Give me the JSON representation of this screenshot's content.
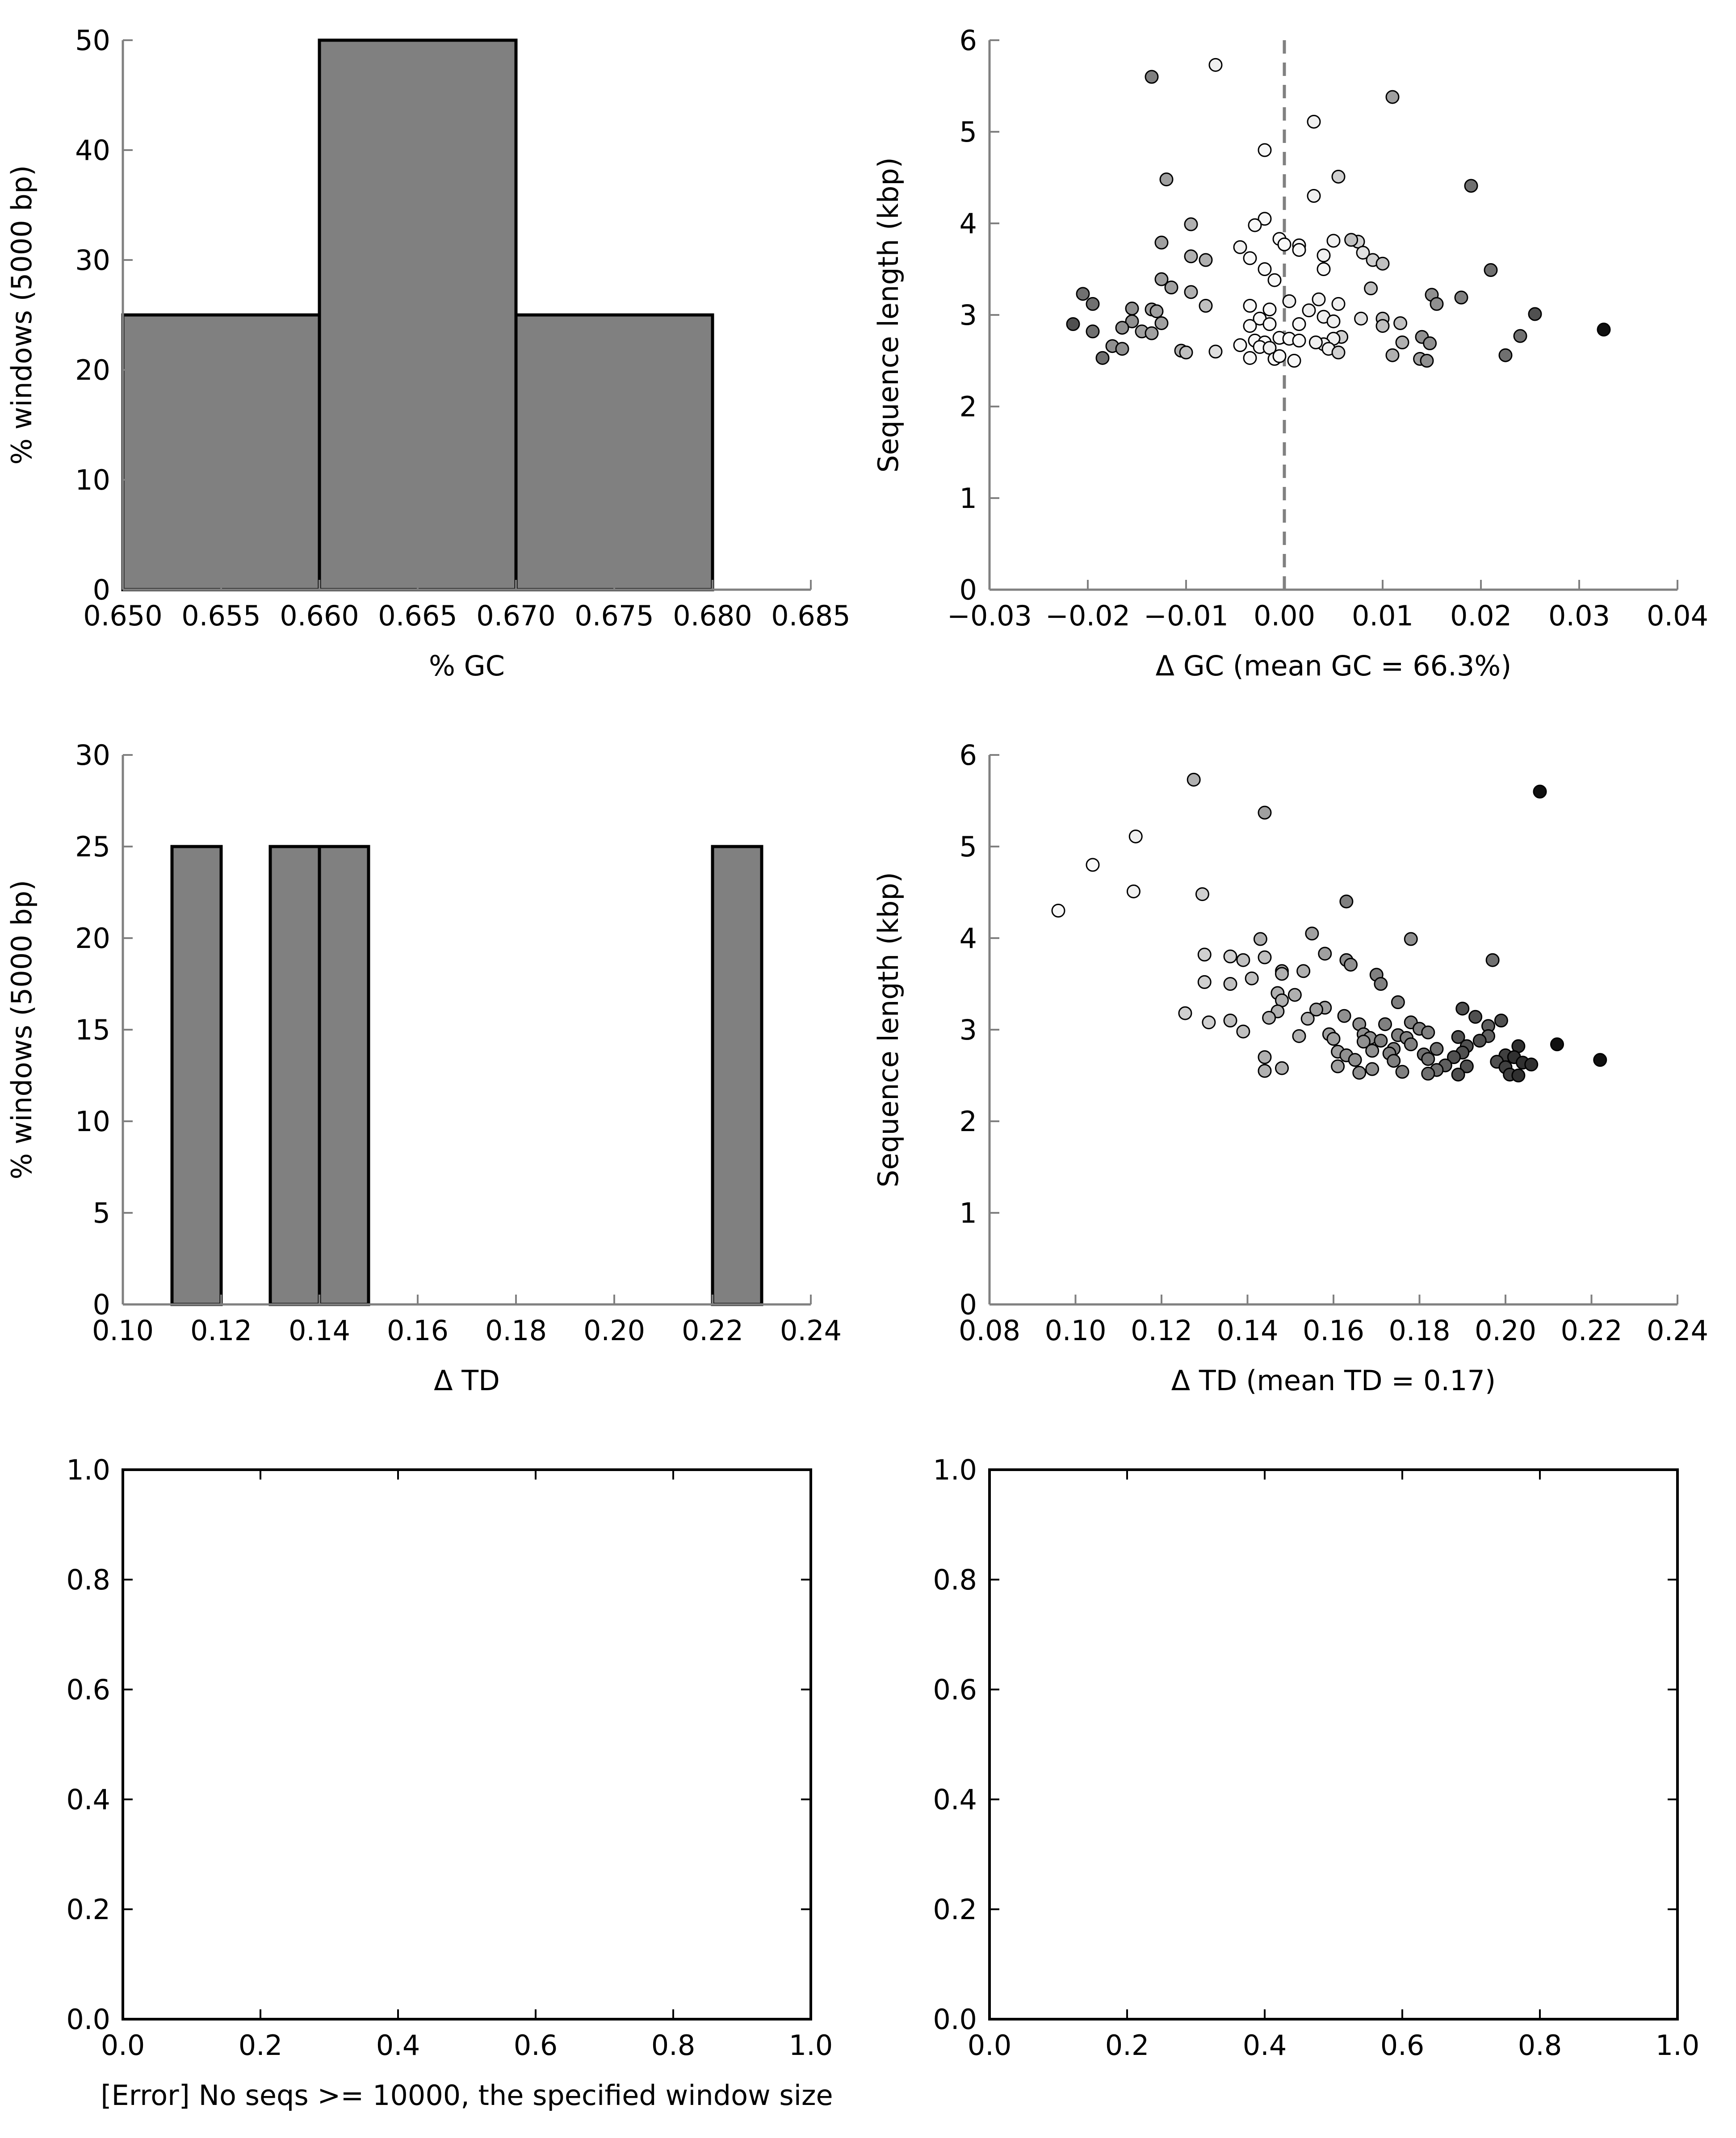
{
  "chart_data": [
    {
      "id": "gc-hist",
      "type": "bar",
      "xlabel": "% GC",
      "ylabel": "% windows (5000 bp)",
      "xlim": [
        0.65,
        0.685
      ],
      "ylim": [
        0,
        50
      ],
      "xticks": [
        "0.650",
        "0.655",
        "0.660",
        "0.665",
        "0.670",
        "0.675",
        "0.680",
        "0.685"
      ],
      "yticks": [
        "0",
        "10",
        "20",
        "30",
        "40",
        "50"
      ],
      "bars": [
        {
          "x0": 0.65,
          "x1": 0.66,
          "value": 25
        },
        {
          "x0": 0.66,
          "x1": 0.67,
          "value": 50
        },
        {
          "x0": 0.67,
          "x1": 0.68,
          "value": 25
        }
      ],
      "bar_color": "#808080"
    },
    {
      "id": "gc-scatter",
      "type": "scatter",
      "xlabel": "Δ GC (mean GC = 66.3%)",
      "ylabel": "Sequence length (kbp)",
      "xlim": [
        -0.03,
        0.04
      ],
      "ylim": [
        0,
        6
      ],
      "xticks": [
        "−0.03",
        "−0.02",
        "−0.01",
        "0.00",
        "0.01",
        "0.02",
        "0.03",
        "0.04"
      ],
      "yticks": [
        "0",
        "1",
        "2",
        "3",
        "4",
        "5",
        "6"
      ],
      "reference_line_x": 0,
      "points": [
        [
          -0.0135,
          5.6,
          "#808080"
        ],
        [
          -0.007,
          5.73,
          "#f0f0f0"
        ],
        [
          0.011,
          5.38,
          "#a0a0a0"
        ],
        [
          0.003,
          5.11,
          "#f0f0f0"
        ],
        [
          -0.002,
          4.8,
          "#f8f8f8"
        ],
        [
          0.0055,
          4.51,
          "#d0d0d0"
        ],
        [
          -0.012,
          4.48,
          "#a0a0a0"
        ],
        [
          0.019,
          4.41,
          "#707070"
        ],
        [
          0.003,
          4.3,
          "#f0f0f0"
        ],
        [
          -0.002,
          4.05,
          "#f8f8f8"
        ],
        [
          -0.003,
          3.98,
          "#f8f8f8"
        ],
        [
          -0.0095,
          3.99,
          "#b0b0b0"
        ],
        [
          -0.0005,
          3.83,
          "#f8f8f8"
        ],
        [
          0.0075,
          3.8,
          "#d0d0d0"
        ],
        [
          -0.0125,
          3.79,
          "#a0a0a0"
        ],
        [
          0.005,
          3.81,
          "#f0f0f0"
        ],
        [
          0.0068,
          3.82,
          "#c0c0c0"
        ],
        [
          0.0015,
          3.76,
          "#f8f8f8"
        ],
        [
          -0.0045,
          3.74,
          "#f0f0f0"
        ],
        [
          0.0,
          3.77,
          "#f8f8f8"
        ],
        [
          0.0015,
          3.71,
          "#f8f8f8"
        ],
        [
          0.008,
          3.68,
          "#e0e0e0"
        ],
        [
          -0.0095,
          3.64,
          "#b0b0b0"
        ],
        [
          -0.0035,
          3.62,
          "#f8f8f8"
        ],
        [
          0.004,
          3.65,
          "#f0f0f0"
        ],
        [
          -0.008,
          3.6,
          "#b0b0b0"
        ],
        [
          0.009,
          3.6,
          "#d0d0d0"
        ],
        [
          0.01,
          3.56,
          "#c0c0c0"
        ],
        [
          0.004,
          3.5,
          "#f8f8f8"
        ],
        [
          -0.002,
          3.5,
          "#f8f8f8"
        ],
        [
          0.021,
          3.49,
          "#707070"
        ],
        [
          -0.0125,
          3.39,
          "#a0a0a0"
        ],
        [
          -0.001,
          3.38,
          "#f8f8f8"
        ],
        [
          -0.0115,
          3.3,
          "#a0a0a0"
        ],
        [
          0.0088,
          3.29,
          "#c0c0c0"
        ],
        [
          -0.0095,
          3.25,
          "#b0b0b0"
        ],
        [
          -0.0205,
          3.23,
          "#707070"
        ],
        [
          0.015,
          3.22,
          "#909090"
        ],
        [
          0.018,
          3.19,
          "#808080"
        ],
        [
          0.0035,
          3.17,
          "#f0f0f0"
        ],
        [
          0.0005,
          3.15,
          "#f0f0f0"
        ],
        [
          -0.0195,
          3.12,
          "#707070"
        ],
        [
          0.0155,
          3.12,
          "#909090"
        ],
        [
          0.0055,
          3.12,
          "#f0f0f0"
        ],
        [
          -0.0035,
          3.1,
          "#f8f8f8"
        ],
        [
          -0.008,
          3.1,
          "#c0c0c0"
        ],
        [
          -0.0155,
          3.07,
          "#909090"
        ],
        [
          -0.0135,
          3.06,
          "#a0a0a0"
        ],
        [
          -0.0015,
          3.06,
          "#f8f8f8"
        ],
        [
          0.0025,
          3.05,
          "#f0f0f0"
        ],
        [
          -0.013,
          3.04,
          "#a0a0a0"
        ],
        [
          0.0255,
          3.01,
          "#505050"
        ],
        [
          0.004,
          2.98,
          "#f0f0f0"
        ],
        [
          0.0078,
          2.96,
          "#e0e0e0"
        ],
        [
          0.01,
          2.96,
          "#c0c0c0"
        ],
        [
          -0.0025,
          2.96,
          "#f8f8f8"
        ],
        [
          -0.0155,
          2.93,
          "#909090"
        ],
        [
          0.005,
          2.93,
          "#f0f0f0"
        ],
        [
          -0.0125,
          2.91,
          "#a0a0a0"
        ],
        [
          0.0118,
          2.91,
          "#c0c0c0"
        ],
        [
          -0.0015,
          2.9,
          "#f8f8f8"
        ],
        [
          -0.0215,
          2.9,
          "#505050"
        ],
        [
          0.0015,
          2.9,
          "#f8f8f8"
        ],
        [
          -0.0035,
          2.88,
          "#f8f8f8"
        ],
        [
          0.01,
          2.88,
          "#c0c0c0"
        ],
        [
          -0.0165,
          2.86,
          "#909090"
        ],
        [
          0.0325,
          2.84,
          "#101010"
        ],
        [
          -0.0195,
          2.82,
          "#707070"
        ],
        [
          -0.0145,
          2.82,
          "#a0a0a0"
        ],
        [
          -0.0135,
          2.8,
          "#a0a0a0"
        ],
        [
          0.024,
          2.77,
          "#707070"
        ],
        [
          0.0058,
          2.76,
          "#d0d0d0"
        ],
        [
          0.014,
          2.76,
          "#909090"
        ],
        [
          -0.0005,
          2.75,
          "#f8f8f8"
        ],
        [
          0.0005,
          2.74,
          "#f8f8f8"
        ],
        [
          0.005,
          2.74,
          "#f0f0f0"
        ],
        [
          -0.003,
          2.72,
          "#f8f8f8"
        ],
        [
          0.0015,
          2.72,
          "#f8f8f8"
        ],
        [
          -0.002,
          2.7,
          "#f8f8f8"
        ],
        [
          0.012,
          2.7,
          "#b0b0b0"
        ],
        [
          0.0148,
          2.69,
          "#909090"
        ],
        [
          0.004,
          2.68,
          "#f0f0f0"
        ],
        [
          -0.0045,
          2.67,
          "#f8f8f8"
        ],
        [
          -0.0175,
          2.66,
          "#909090"
        ],
        [
          -0.0025,
          2.65,
          "#f8f8f8"
        ],
        [
          -0.0015,
          2.64,
          "#f0f0f0"
        ],
        [
          0.0045,
          2.63,
          "#f0f0f0"
        ],
        [
          -0.0165,
          2.63,
          "#909090"
        ],
        [
          -0.0105,
          2.61,
          "#b0b0b0"
        ],
        [
          -0.007,
          2.6,
          "#e0e0e0"
        ],
        [
          -0.01,
          2.59,
          "#c0c0c0"
        ],
        [
          0.0055,
          2.59,
          "#d0d0d0"
        ],
        [
          0.0225,
          2.56,
          "#707070"
        ],
        [
          0.011,
          2.56,
          "#b0b0b0"
        ],
        [
          -0.0035,
          2.53,
          "#f8f8f8"
        ],
        [
          -0.0185,
          2.53,
          "#707070"
        ],
        [
          -0.001,
          2.52,
          "#f8f8f8"
        ],
        [
          0.0138,
          2.52,
          "#a0a0a0"
        ],
        [
          0.0145,
          2.5,
          "#909090"
        ],
        [
          0.001,
          2.5,
          "#f8f8f8"
        ],
        [
          0.0032,
          2.7,
          "#f0f0f0"
        ],
        [
          -0.0005,
          2.55,
          "#f8f8f8"
        ]
      ]
    },
    {
      "id": "td-hist",
      "type": "bar",
      "xlabel": "Δ TD",
      "ylabel": "% windows (5000 bp)",
      "xlim": [
        0.1,
        0.24
      ],
      "ylim": [
        0,
        30
      ],
      "xticks": [
        "0.10",
        "0.12",
        "0.14",
        "0.16",
        "0.18",
        "0.20",
        "0.22",
        "0.24"
      ],
      "yticks": [
        "0",
        "5",
        "10",
        "15",
        "20",
        "25",
        "30"
      ],
      "bars": [
        {
          "x0": 0.11,
          "x1": 0.12,
          "value": 25
        },
        {
          "x0": 0.13,
          "x1": 0.14,
          "value": 25
        },
        {
          "x0": 0.14,
          "x1": 0.15,
          "value": 25
        },
        {
          "x0": 0.22,
          "x1": 0.23,
          "value": 25
        }
      ],
      "bar_color": "#808080"
    },
    {
      "id": "td-scatter",
      "type": "scatter",
      "xlabel": "Δ TD (mean TD = 0.17)",
      "ylabel": "Sequence length (kbp)",
      "xlim": [
        0.08,
        0.24
      ],
      "ylim": [
        0,
        6
      ],
      "xticks": [
        "0.08",
        "0.10",
        "0.12",
        "0.14",
        "0.16",
        "0.18",
        "0.20",
        "0.22",
        "0.24"
      ],
      "yticks": [
        "0",
        "1",
        "2",
        "3",
        "4",
        "5",
        "6"
      ],
      "points": [
        [
          0.208,
          5.6,
          "#101010"
        ],
        [
          0.1275,
          5.73,
          "#b0b0b0"
        ],
        [
          0.144,
          5.37,
          "#a0a0a0"
        ],
        [
          0.114,
          5.11,
          "#f0f0f0"
        ],
        [
          0.104,
          4.8,
          "#f8f8f8"
        ],
        [
          0.1135,
          4.51,
          "#f0f0f0"
        ],
        [
          0.1295,
          4.48,
          "#d0d0d0"
        ],
        [
          0.163,
          4.4,
          "#808080"
        ],
        [
          0.096,
          4.3,
          "#f8f8f8"
        ],
        [
          0.155,
          4.05,
          "#a0a0a0"
        ],
        [
          0.143,
          3.99,
          "#b0b0b0"
        ],
        [
          0.178,
          3.99,
          "#909090"
        ],
        [
          0.13,
          3.82,
          "#d0d0d0"
        ],
        [
          0.136,
          3.8,
          "#d0d0d0"
        ],
        [
          0.158,
          3.83,
          "#a0a0a0"
        ],
        [
          0.144,
          3.79,
          "#c0c0c0"
        ],
        [
          0.139,
          3.76,
          "#c0c0c0"
        ],
        [
          0.163,
          3.76,
          "#909090"
        ],
        [
          0.197,
          3.76,
          "#707070"
        ],
        [
          0.164,
          3.71,
          "#909090"
        ],
        [
          0.17,
          3.6,
          "#808080"
        ],
        [
          0.153,
          3.64,
          "#b0b0b0"
        ],
        [
          0.148,
          3.64,
          "#a0a0a0"
        ],
        [
          0.141,
          3.56,
          "#c0c0c0"
        ],
        [
          0.148,
          3.61,
          "#b0b0b0"
        ],
        [
          0.13,
          3.52,
          "#d0d0d0"
        ],
        [
          0.136,
          3.5,
          "#c0c0c0"
        ],
        [
          0.171,
          3.5,
          "#808080"
        ],
        [
          0.175,
          3.3,
          "#808080"
        ],
        [
          0.147,
          3.4,
          "#b0b0b0"
        ],
        [
          0.151,
          3.38,
          "#b0b0b0"
        ],
        [
          0.148,
          3.32,
          "#b0b0b0"
        ],
        [
          0.19,
          3.23,
          "#505050"
        ],
        [
          0.1255,
          3.18,
          "#d0d0d0"
        ],
        [
          0.158,
          3.24,
          "#a0a0a0"
        ],
        [
          0.156,
          3.22,
          "#a0a0a0"
        ],
        [
          0.147,
          3.2,
          "#b0b0b0"
        ],
        [
          0.193,
          3.14,
          "#505050"
        ],
        [
          0.1625,
          3.15,
          "#909090"
        ],
        [
          0.154,
          3.12,
          "#b0b0b0"
        ],
        [
          0.136,
          3.1,
          "#c0c0c0"
        ],
        [
          0.145,
          3.13,
          "#b0b0b0"
        ],
        [
          0.199,
          3.1,
          "#505050"
        ],
        [
          0.131,
          3.08,
          "#d0d0d0"
        ],
        [
          0.178,
          3.08,
          "#808080"
        ],
        [
          0.166,
          3.06,
          "#909090"
        ],
        [
          0.172,
          3.06,
          "#808080"
        ],
        [
          0.196,
          3.04,
          "#606060"
        ],
        [
          0.18,
          3.01,
          "#808080"
        ],
        [
          0.182,
          2.97,
          "#808080"
        ],
        [
          0.139,
          2.98,
          "#c0c0c0"
        ],
        [
          0.159,
          2.95,
          "#a0a0a0"
        ],
        [
          0.167,
          2.95,
          "#909090"
        ],
        [
          0.175,
          2.94,
          "#808080"
        ],
        [
          0.152,
          2.93,
          "#b0b0b0"
        ],
        [
          0.189,
          2.92,
          "#505050"
        ],
        [
          0.196,
          2.93,
          "#606060"
        ],
        [
          0.177,
          2.91,
          "#808080"
        ],
        [
          0.1685,
          2.91,
          "#909090"
        ],
        [
          0.16,
          2.9,
          "#a0a0a0"
        ],
        [
          0.194,
          2.88,
          "#505050"
        ],
        [
          0.171,
          2.88,
          "#808080"
        ],
        [
          0.167,
          2.87,
          "#909090"
        ],
        [
          0.212,
          2.84,
          "#101010"
        ],
        [
          0.178,
          2.84,
          "#808080"
        ],
        [
          0.191,
          2.82,
          "#505050"
        ],
        [
          0.203,
          2.82,
          "#303030"
        ],
        [
          0.184,
          2.79,
          "#707070"
        ],
        [
          0.174,
          2.79,
          "#808080"
        ],
        [
          0.169,
          2.77,
          "#909090"
        ],
        [
          0.161,
          2.76,
          "#a0a0a0"
        ],
        [
          0.19,
          2.75,
          "#505050"
        ],
        [
          0.173,
          2.74,
          "#808080"
        ],
        [
          0.181,
          2.73,
          "#707070"
        ],
        [
          0.2,
          2.72,
          "#404040"
        ],
        [
          0.163,
          2.72,
          "#909090"
        ],
        [
          0.202,
          2.7,
          "#303030"
        ],
        [
          0.188,
          2.7,
          "#505050"
        ],
        [
          0.144,
          2.7,
          "#b0b0b0"
        ],
        [
          0.182,
          2.68,
          "#707070"
        ],
        [
          0.165,
          2.67,
          "#909090"
        ],
        [
          0.222,
          2.67,
          "#101010"
        ],
        [
          0.174,
          2.66,
          "#808080"
        ],
        [
          0.198,
          2.65,
          "#505050"
        ],
        [
          0.204,
          2.64,
          "#303030"
        ],
        [
          0.206,
          2.62,
          "#303030"
        ],
        [
          0.186,
          2.61,
          "#606060"
        ],
        [
          0.161,
          2.6,
          "#a0a0a0"
        ],
        [
          0.191,
          2.6,
          "#505050"
        ],
        [
          0.2,
          2.59,
          "#404040"
        ],
        [
          0.148,
          2.58,
          "#b0b0b0"
        ],
        [
          0.169,
          2.57,
          "#909090"
        ],
        [
          0.184,
          2.56,
          "#707070"
        ],
        [
          0.144,
          2.55,
          "#b0b0b0"
        ],
        [
          0.176,
          2.54,
          "#808080"
        ],
        [
          0.166,
          2.53,
          "#909090"
        ],
        [
          0.182,
          2.52,
          "#707070"
        ],
        [
          0.189,
          2.51,
          "#505050"
        ],
        [
          0.201,
          2.51,
          "#404040"
        ],
        [
          0.203,
          2.5,
          "#303030"
        ]
      ]
    },
    {
      "id": "empty-left",
      "type": "scatter",
      "xlabel": "[Error] No seqs >= 10000, the specified window size",
      "ylabel": "",
      "xlim": [
        0,
        1
      ],
      "ylim": [
        0,
        1
      ],
      "xticks": [
        "0.0",
        "0.2",
        "0.4",
        "0.6",
        "0.8",
        "1.0"
      ],
      "yticks": [
        "0.0",
        "0.2",
        "0.4",
        "0.6",
        "0.8",
        "1.0"
      ],
      "points": []
    },
    {
      "id": "empty-right",
      "type": "scatter",
      "xlabel": "",
      "ylabel": "",
      "xlim": [
        0,
        1
      ],
      "ylim": [
        0,
        1
      ],
      "xticks": [
        "0.0",
        "0.2",
        "0.4",
        "0.6",
        "0.8",
        "1.0"
      ],
      "yticks": [
        "0.0",
        "0.2",
        "0.4",
        "0.6",
        "0.8",
        "1.0"
      ],
      "points": []
    }
  ]
}
